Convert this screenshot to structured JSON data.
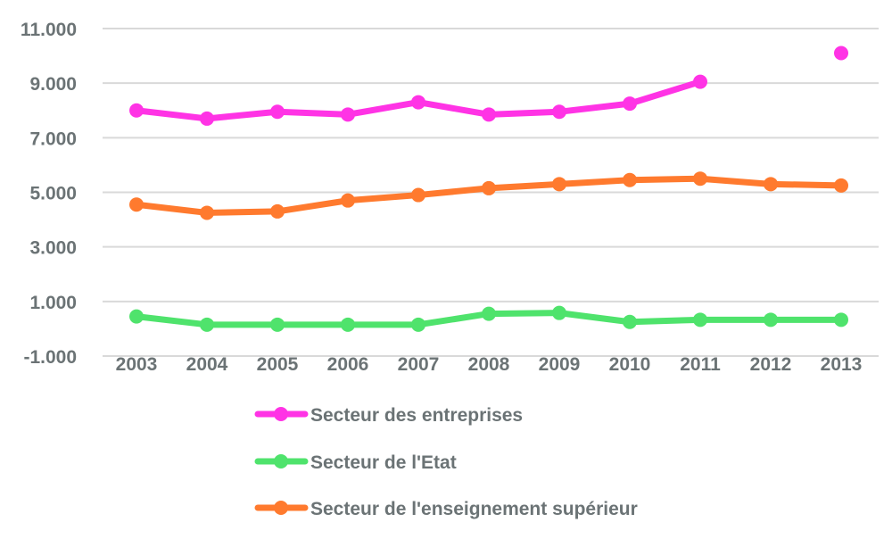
{
  "chart_data": {
    "type": "line",
    "x": [
      "2003",
      "2004",
      "2005",
      "2006",
      "2007",
      "2008",
      "2009",
      "2010",
      "2011",
      "2012",
      "2013"
    ],
    "yticks": [
      "11.000",
      "9.000",
      "7.000",
      "5.000",
      "3.000",
      "1.000",
      "-1.000"
    ],
    "ytick_values": [
      11000,
      9000,
      7000,
      5000,
      3000,
      1000,
      -1000
    ],
    "ylim": [
      -1000,
      11000
    ],
    "grid": true,
    "legend_position": "bottom",
    "series": [
      {
        "name": "Secteur des entreprises",
        "color": "#ff33e5",
        "values": [
          8000,
          7700,
          7950,
          7850,
          8300,
          7850,
          7950,
          8250,
          9050,
          null,
          10100
        ]
      },
      {
        "name": "Secteur de l'Etat",
        "color": "#4fe36c",
        "values": [
          450,
          150,
          150,
          150,
          150,
          550,
          580,
          250,
          330,
          330,
          330
        ]
      },
      {
        "name": "Secteur de l'enseignement supérieur",
        "color": "#ff7a2e",
        "values": [
          4550,
          4250,
          4300,
          4700,
          4900,
          5150,
          5300,
          5450,
          5500,
          5300,
          5250
        ]
      }
    ]
  }
}
